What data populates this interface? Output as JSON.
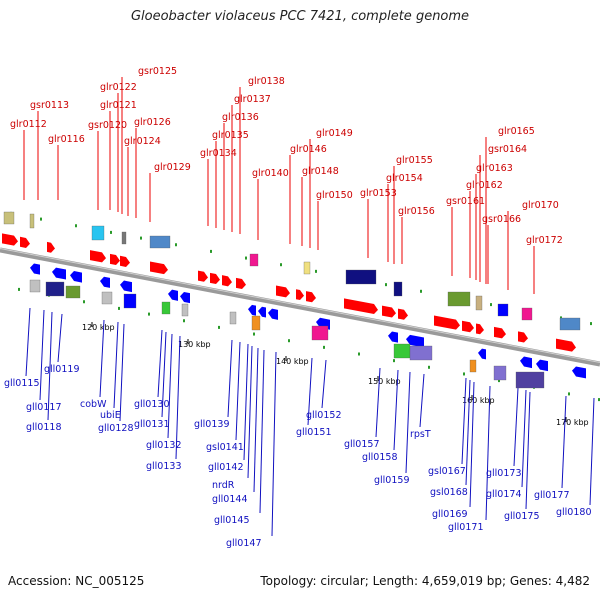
{
  "title": "Gloeobacter violaceus PCC 7421, complete genome",
  "footer": {
    "accession": "Accession: NC_005125",
    "summary": "Topology: circular; Length: 4,659,019 bp; Genes: 4,482"
  },
  "colors": {
    "forward_arrows": "#ff0000",
    "reverse_arrows": "#0000ff",
    "label_forward": "#cc0000",
    "label_reverse": "#1010c0",
    "backbone": "#888888"
  },
  "scale_ticks": [
    "120 kbp",
    "130 kbp",
    "140 kbp",
    "150 kbp",
    "160 kbp",
    "170 kbp"
  ],
  "upper_labels": [
    "glr0112",
    "gsr0113",
    "glr0116",
    "gsr0120",
    "glr0121",
    "glr0122",
    "gsr0125",
    "glr0124",
    "glr0126",
    "glr0129",
    "glr0134",
    "glr0135",
    "glr0136",
    "glr0137",
    "glr0138",
    "glr0140",
    "glr0146",
    "glr0148",
    "glr0149",
    "glr0150",
    "glr0153",
    "glr0154",
    "glr0155",
    "glr0156",
    "gsr0161",
    "glr0162",
    "glr0163",
    "gsr0164",
    "glr0165",
    "gsr0166",
    "glr0170",
    "glr0172"
  ],
  "lower_labels": [
    "gll0115",
    "gll0117",
    "gll0118",
    "gll0119",
    "cobW",
    "ubiE",
    "gll0128",
    "gll0130",
    "gll0131",
    "gll0132",
    "gll0133",
    "gll0139",
    "gsl0141",
    "gll0142",
    "nrdR",
    "gll0144",
    "gll0145",
    "gll0147",
    "gll0151",
    "gll0152",
    "gll0157",
    "gll0158",
    "gll0159",
    "rpsT",
    "gsl0167",
    "gsl0168",
    "gll0169",
    "gll0171",
    "gll0173",
    "gll0174",
    "gll0175",
    "gll0177",
    "gll0180"
  ]
}
